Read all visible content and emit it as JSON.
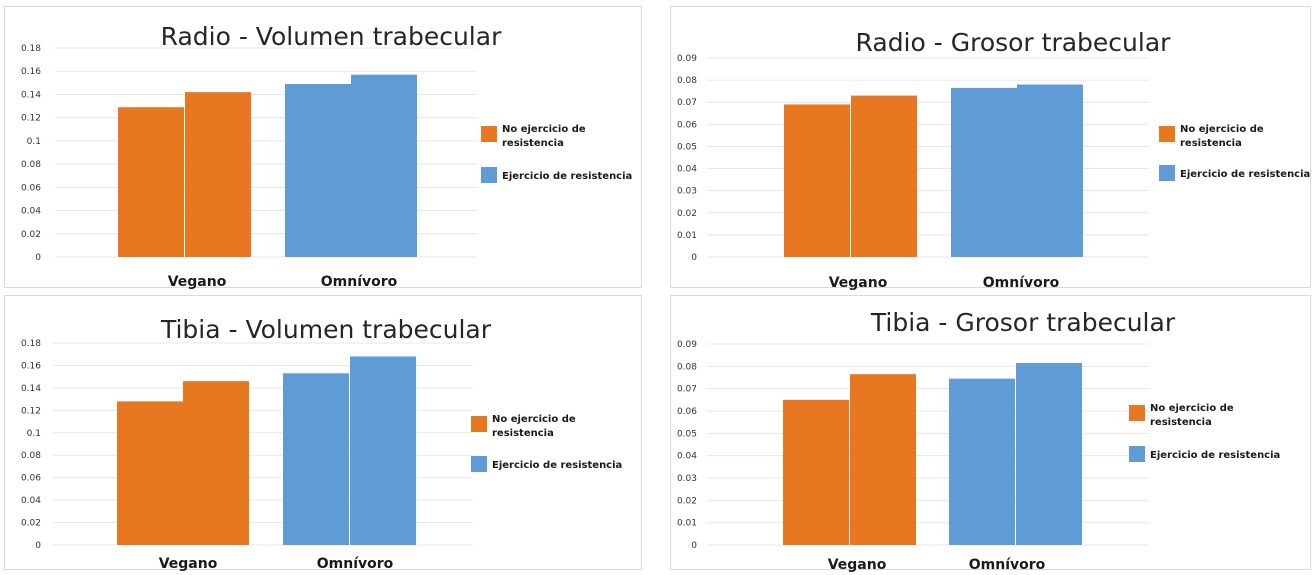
{
  "chart_data": [
    {
      "type": "bar",
      "title": "Radio - Volumen trabecular",
      "categories": [
        "Vegano",
        "Omnívoro"
      ],
      "series": [
        {
          "name": "No ejercicio de resistencia",
          "values": [
            0.129,
            0.142
          ]
        },
        {
          "name": "Ejercicio de resistencia",
          "values": [
            0.149,
            0.157
          ]
        }
      ],
      "ylim": [
        0,
        0.18
      ],
      "yticks": [
        "0.18",
        "0.16",
        "0.14",
        "0.12",
        "0.1",
        "0.08",
        "0.06",
        "0.04",
        "0.02",
        "0"
      ],
      "grid": true,
      "legend": "right"
    },
    {
      "type": "bar",
      "title": "Radio - Grosor trabecular",
      "categories": [
        "Vegano",
        "Omnívoro"
      ],
      "series": [
        {
          "name": "No ejercicio de resistencia",
          "values": [
            0.069,
            0.073
          ]
        },
        {
          "name": "Ejercicio de resistencia",
          "values": [
            0.0765,
            0.078
          ]
        }
      ],
      "ylim": [
        0,
        0.09
      ],
      "yticks": [
        "0.09",
        "0.08",
        "0.07",
        "0.06",
        "0.05",
        "0.04",
        "0.03",
        "0.02",
        "0.01",
        "0"
      ],
      "grid": true,
      "legend": "right"
    },
    {
      "type": "bar",
      "title": "Tibia - Volumen trabecular",
      "categories": [
        "Vegano",
        "Omnívoro"
      ],
      "series": [
        {
          "name": "No ejercicio de resistencia",
          "values": [
            0.128,
            0.146
          ]
        },
        {
          "name": "Ejercicio de resistencia",
          "values": [
            0.153,
            0.168
          ]
        }
      ],
      "ylim": [
        0,
        0.18
      ],
      "yticks": [
        "0.18",
        "0.16",
        "0.14",
        "0.12",
        "0.1",
        "0.08",
        "0.06",
        "0.04",
        "0.02",
        "0"
      ],
      "grid": true,
      "legend": "right"
    },
    {
      "type": "bar",
      "title": "Tibia - Grosor trabecular",
      "categories": [
        "Vegano",
        "Omnívoro"
      ],
      "series": [
        {
          "name": "No ejercicio de resistencia",
          "values": [
            0.065,
            0.0765
          ]
        },
        {
          "name": "Ejercicio de resistencia",
          "values": [
            0.0745,
            0.0815
          ]
        }
      ],
      "ylim": [
        0,
        0.09
      ],
      "yticks": [
        "0.09",
        "0.08",
        "0.07",
        "0.06",
        "0.05",
        "0.04",
        "0.03",
        "0.02",
        "0.01",
        "0"
      ],
      "grid": true,
      "legend": "right"
    }
  ],
  "legend_text": {
    "no_exercise_line1": "No ejercicio de",
    "no_exercise_line2": "resistencia",
    "exercise": "Ejercicio de resistencia"
  },
  "colors": {
    "no_exercise": "#e87722",
    "exercise": "#5f9bd5"
  }
}
